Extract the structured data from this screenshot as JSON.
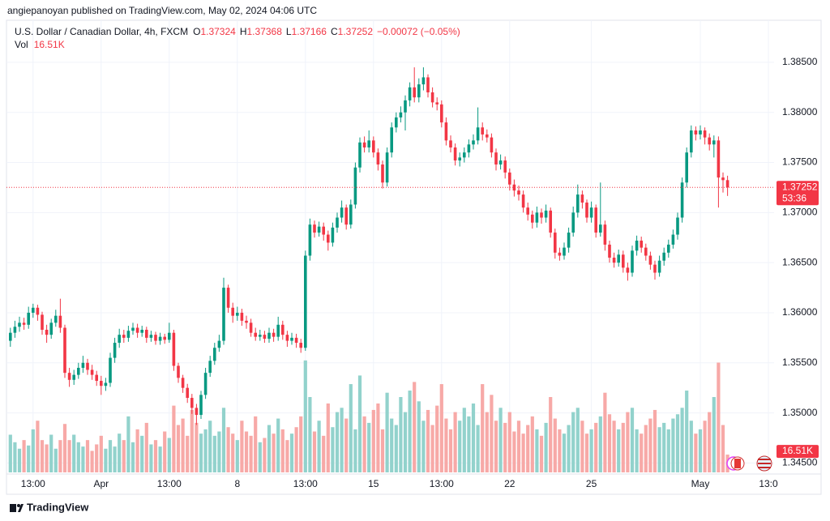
{
  "header": {
    "publisher": "angiepanoyan published on TradingView.com, May 02, 2024 04:06 UTC"
  },
  "footer": {
    "brand": "TradingView"
  },
  "chart_data": {
    "type": "candlestick",
    "title": "U.S. Dollar / Canadian Dollar, 4h, FXCM",
    "ohlc_prefixes": [
      "O",
      "H",
      "L",
      "C"
    ],
    "change": "−0.00072 (−0.05%)",
    "volume_title": "Vol",
    "volume_label": "16.51K",
    "countdown": "53:36",
    "categories": [
      null,
      null,
      null,
      null,
      null,
      "13:00",
      null,
      null,
      null,
      null,
      null,
      null,
      null,
      null,
      null,
      null,
      null,
      null,
      null,
      null,
      "Apr",
      null,
      null,
      null,
      null,
      null,
      null,
      null,
      null,
      null,
      null,
      null,
      null,
      null,
      null,
      "13:00",
      null,
      null,
      null,
      null,
      null,
      null,
      null,
      null,
      null,
      null,
      null,
      null,
      null,
      null,
      "8",
      null,
      null,
      null,
      null,
      null,
      null,
      null,
      null,
      null,
      null,
      null,
      null,
      null,
      null,
      "13:00",
      null,
      null,
      null,
      null,
      null,
      null,
      null,
      null,
      null,
      null,
      null,
      null,
      null,
      null,
      "15",
      null,
      null,
      null,
      null,
      null,
      null,
      null,
      null,
      null,
      null,
      null,
      null,
      null,
      null,
      "13:00",
      null,
      null,
      null,
      null,
      null,
      null,
      null,
      null,
      null,
      null,
      null,
      null,
      null,
      null,
      "22",
      null,
      null,
      null,
      null,
      null,
      null,
      null,
      null,
      null,
      null,
      null,
      null,
      null,
      null,
      null,
      null,
      null,
      "25",
      null,
      null,
      null,
      null,
      null,
      null,
      null,
      null,
      null,
      null,
      null,
      null,
      null,
      null,
      null,
      null,
      null,
      null,
      null,
      null,
      null,
      null,
      null,
      "May",
      null,
      null,
      null,
      null,
      null,
      null,
      null,
      null,
      null,
      null,
      null,
      null,
      null,
      null,
      "13:0"
    ],
    "open": [
      1.3572,
      1.358,
      1.3586,
      1.359,
      1.3588,
      1.36,
      1.3605,
      1.3598,
      1.3583,
      1.3578,
      1.359,
      1.3597,
      1.3585,
      1.354,
      1.3533,
      1.3538,
      1.3545,
      1.355,
      1.3543,
      1.3538,
      1.3532,
      1.3527,
      1.353,
      1.3555,
      1.357,
      1.3578,
      1.3575,
      1.3582,
      1.3585,
      1.358,
      1.3583,
      1.3575,
      1.3578,
      1.3572,
      1.3576,
      1.3573,
      1.358,
      1.3547,
      1.3535,
      1.3525,
      1.3515,
      1.3505,
      1.3498,
      1.3518,
      1.354,
      1.3552,
      1.3565,
      1.3572,
      1.3625,
      1.3605,
      1.3597,
      1.36,
      1.3592,
      1.359,
      1.358,
      1.3576,
      1.3578,
      1.3574,
      1.358,
      1.3576,
      1.3588,
      1.3578,
      1.3572,
      1.3575,
      1.357,
      1.3565,
      1.3657,
      1.3688,
      1.368,
      1.3686,
      1.3678,
      1.367,
      1.3685,
      1.3695,
      1.3705,
      1.3688,
      1.3708,
      1.3745,
      1.377,
      1.3765,
      1.3772,
      1.376,
      1.3748,
      1.373,
      1.376,
      1.3785,
      1.3795,
      1.38,
      1.3812,
      1.3825,
      1.3815,
      1.3828,
      1.3835,
      1.382,
      1.381,
      1.3808,
      1.379,
      1.3772,
      1.3765,
      1.3752,
      1.3755,
      1.376,
      1.3768,
      1.3772,
      1.3785,
      1.3778,
      1.3775,
      1.376,
      1.3748,
      1.3752,
      1.374,
      1.3728,
      1.3722,
      1.3718,
      1.3705,
      1.3698,
      1.369,
      1.37,
      1.3695,
      1.3702,
      1.368,
      1.366,
      1.3657,
      1.3665,
      1.368,
      1.37,
      1.3718,
      1.371,
      1.3695,
      1.3705,
      1.368,
      1.3688,
      1.3668,
      1.3655,
      1.365,
      1.3658,
      1.3645,
      1.364,
      1.3662,
      1.3672,
      1.3665,
      1.3657,
      1.3648,
      1.364,
      1.3652,
      1.366,
      1.3668,
      1.3678,
      1.3695,
      1.373,
      1.376,
      1.3782,
      1.3778,
      1.3782,
      1.3775,
      1.3768,
      1.3772,
      1.3735,
      1.37324,
      null,
      null,
      null,
      null,
      null,
      null,
      null,
      null,
      null
    ],
    "high": [
      1.3585,
      1.3592,
      1.3596,
      1.3595,
      1.3606,
      1.3609,
      1.3608,
      1.3601,
      1.3588,
      1.3594,
      1.3603,
      1.3614,
      1.3588,
      1.3545,
      1.3543,
      1.355,
      1.3557,
      1.3554,
      1.3548,
      1.3542,
      1.3537,
      1.3535,
      1.356,
      1.3575,
      1.3584,
      1.3583,
      1.3587,
      1.359,
      1.3589,
      1.3587,
      1.3586,
      1.3582,
      1.3581,
      1.358,
      1.3579,
      1.359,
      1.3583,
      1.355,
      1.3538,
      1.3529,
      1.3519,
      1.3509,
      1.3522,
      1.3545,
      1.3557,
      1.357,
      1.3578,
      1.3635,
      1.3628,
      1.361,
      1.3606,
      1.3604,
      1.3597,
      1.3594,
      1.3585,
      1.3583,
      1.3582,
      1.3585,
      1.3584,
      1.3596,
      1.3592,
      1.3582,
      1.358,
      1.3579,
      1.3574,
      1.3662,
      1.3694,
      1.3692,
      1.3691,
      1.369,
      1.3682,
      1.369,
      1.37,
      1.3712,
      1.3708,
      1.3713,
      1.375,
      1.3775,
      1.3776,
      1.3782,
      1.3776,
      1.3764,
      1.3752,
      1.3765,
      1.379,
      1.38,
      1.3806,
      1.3817,
      1.383,
      1.3845,
      1.3834,
      1.3845,
      1.3838,
      1.3825,
      1.3815,
      1.3812,
      1.3795,
      1.3777,
      1.3769,
      1.376,
      1.3765,
      1.3773,
      1.3778,
      1.3805,
      1.379,
      1.3783,
      1.3779,
      1.3764,
      1.3758,
      1.3756,
      1.3744,
      1.3733,
      1.3727,
      1.3722,
      1.371,
      1.3702,
      1.3706,
      1.3704,
      1.3708,
      1.3705,
      1.3684,
      1.3665,
      1.367,
      1.3685,
      1.3706,
      1.3728,
      1.3722,
      1.3713,
      1.3711,
      1.3708,
      1.373,
      1.3692,
      1.3672,
      1.366,
      1.3663,
      1.3662,
      1.365,
      1.3667,
      1.3677,
      1.3676,
      1.3669,
      1.3661,
      1.3652,
      1.3657,
      1.3665,
      1.3673,
      1.3683,
      1.37,
      1.3735,
      1.3765,
      1.3787,
      1.3786,
      1.3787,
      1.3785,
      1.3779,
      1.3777,
      1.3776,
      1.374,
      1.37368,
      null,
      null,
      null,
      null,
      null,
      null,
      null,
      null,
      null
    ],
    "low": [
      1.3566,
      1.3575,
      1.3581,
      1.3583,
      1.3584,
      1.3595,
      1.3592,
      1.3578,
      1.357,
      1.3574,
      1.3586,
      1.358,
      1.3535,
      1.3526,
      1.3528,
      1.3534,
      1.354,
      1.3538,
      1.3533,
      1.3527,
      1.3518,
      1.3522,
      1.3526,
      1.355,
      1.3565,
      1.357,
      1.3571,
      1.3578,
      1.3575,
      1.3576,
      1.357,
      1.3571,
      1.3568,
      1.3568,
      1.3569,
      1.357,
      1.3542,
      1.353,
      1.352,
      1.351,
      1.3499,
      1.3488,
      1.3494,
      1.3514,
      1.3536,
      1.3548,
      1.3561,
      1.3568,
      1.36,
      1.359,
      1.3592,
      1.3587,
      1.3584,
      1.3576,
      1.3572,
      1.3572,
      1.357,
      1.357,
      1.3571,
      1.3572,
      1.3573,
      1.3566,
      1.3568,
      1.3565,
      1.356,
      1.3562,
      1.3652,
      1.3675,
      1.3676,
      1.3672,
      1.3662,
      1.3666,
      1.368,
      1.369,
      1.3683,
      1.3684,
      1.3704,
      1.374,
      1.376,
      1.376,
      1.3755,
      1.3742,
      1.3724,
      1.3726,
      1.3755,
      1.378,
      1.379,
      1.3782,
      1.3806,
      1.381,
      1.381,
      1.3822,
      1.3815,
      1.3805,
      1.3802,
      1.3785,
      1.3767,
      1.376,
      1.3747,
      1.3746,
      1.375,
      1.3755,
      1.3763,
      1.3768,
      1.3772,
      1.377,
      1.3755,
      1.3742,
      1.3743,
      1.3734,
      1.3722,
      1.3716,
      1.3712,
      1.37,
      1.3692,
      1.3684,
      1.3685,
      1.3689,
      1.369,
      1.3675,
      1.3654,
      1.3652,
      1.3653,
      1.366,
      1.3676,
      1.3695,
      1.3704,
      1.369,
      1.369,
      1.3675,
      1.3676,
      1.3662,
      1.365,
      1.3645,
      1.3646,
      1.364,
      1.3632,
      1.3636,
      1.3657,
      1.366,
      1.3652,
      1.3643,
      1.3633,
      1.3636,
      1.3647,
      1.3655,
      1.3664,
      1.3673,
      1.369,
      1.3725,
      1.3755,
      1.3772,
      1.3773,
      1.3768,
      1.3762,
      1.3755,
      1.3705,
      1.372,
      1.37166,
      null,
      null,
      null,
      null,
      null,
      null,
      null,
      null,
      null
    ],
    "close": [
      1.358,
      1.3586,
      1.359,
      1.3588,
      1.36,
      1.3605,
      1.3598,
      1.3583,
      1.3578,
      1.359,
      1.3597,
      1.3585,
      1.354,
      1.3533,
      1.3538,
      1.3545,
      1.355,
      1.3543,
      1.3538,
      1.3532,
      1.3527,
      1.353,
      1.3555,
      1.357,
      1.3578,
      1.3575,
      1.3582,
      1.3585,
      1.358,
      1.3583,
      1.3575,
      1.3578,
      1.3572,
      1.3576,
      1.3573,
      1.358,
      1.3547,
      1.3535,
      1.3525,
      1.3515,
      1.3505,
      1.3498,
      1.3518,
      1.354,
      1.3552,
      1.3565,
      1.3572,
      1.3625,
      1.3605,
      1.3597,
      1.36,
      1.3592,
      1.359,
      1.358,
      1.3576,
      1.3578,
      1.3574,
      1.358,
      1.3576,
      1.3588,
      1.3578,
      1.3572,
      1.3575,
      1.357,
      1.3565,
      1.3657,
      1.3688,
      1.368,
      1.3686,
      1.3678,
      1.367,
      1.3685,
      1.3695,
      1.3705,
      1.3688,
      1.3708,
      1.3745,
      1.377,
      1.3765,
      1.3772,
      1.376,
      1.3748,
      1.373,
      1.376,
      1.3785,
      1.3795,
      1.38,
      1.3812,
      1.3825,
      1.3815,
      1.3828,
      1.3835,
      1.382,
      1.381,
      1.3808,
      1.379,
      1.3772,
      1.3765,
      1.3752,
      1.3755,
      1.376,
      1.3768,
      1.3772,
      1.3785,
      1.3778,
      1.3775,
      1.376,
      1.3748,
      1.3752,
      1.374,
      1.3728,
      1.3722,
      1.3718,
      1.3705,
      1.3698,
      1.369,
      1.37,
      1.3695,
      1.3702,
      1.368,
      1.366,
      1.3657,
      1.3665,
      1.368,
      1.37,
      1.3718,
      1.371,
      1.3695,
      1.3705,
      1.368,
      1.3688,
      1.3668,
      1.3655,
      1.365,
      1.3658,
      1.3645,
      1.364,
      1.3662,
      1.3672,
      1.3665,
      1.3657,
      1.3648,
      1.364,
      1.3652,
      1.366,
      1.3668,
      1.3678,
      1.3695,
      1.373,
      1.376,
      1.3782,
      1.3778,
      1.3782,
      1.3775,
      1.3768,
      1.3772,
      1.3735,
      1.37324,
      1.37252,
      null,
      null,
      null,
      null,
      null,
      null,
      null,
      null,
      null
    ],
    "volume": [
      35000,
      28000,
      22000,
      30000,
      25000,
      40000,
      48000,
      30000,
      26000,
      35000,
      22000,
      30000,
      45000,
      30000,
      35000,
      28000,
      24000,
      30000,
      20000,
      26000,
      34000,
      22000,
      30000,
      24000,
      36000,
      30000,
      52000,
      28000,
      40000,
      34000,
      46000,
      26000,
      30000,
      24000,
      38000,
      32000,
      62000,
      44000,
      50000,
      34000,
      58000,
      46000,
      36000,
      40000,
      48000,
      34000,
      38000,
      60000,
      42000,
      36000,
      30000,
      48000,
      38000,
      34000,
      52000,
      28000,
      32000,
      44000,
      36000,
      50000,
      40000,
      30000,
      36000,
      42000,
      52000,
      104000,
      70000,
      38000,
      48000,
      34000,
      64000,
      42000,
      56000,
      60000,
      50000,
      82000,
      40000,
      90000,
      52000,
      46000,
      58000,
      64000,
      40000,
      74000,
      50000,
      44000,
      70000,
      56000,
      76000,
      84000,
      66000,
      48000,
      58000,
      44000,
      62000,
      82000,
      50000,
      40000,
      56000,
      48000,
      60000,
      52000,
      64000,
      44000,
      82000,
      56000,
      72000,
      48000,
      60000,
      46000,
      56000,
      38000,
      48000,
      36000,
      44000,
      52000,
      40000,
      34000,
      46000,
      70000,
      50000,
      40000,
      36000,
      44000,
      56000,
      60000,
      48000,
      36000,
      40000,
      46000,
      52000,
      74000,
      54000,
      48000,
      40000,
      46000,
      56000,
      60000,
      40000,
      36000,
      44000,
      50000,
      58000,
      42000,
      46000,
      40000,
      50000,
      54000,
      60000,
      76000,
      48000,
      36000,
      40000,
      48000,
      56000,
      70000,
      102000,
      44000,
      16510,
      null,
      null,
      null,
      null,
      null,
      null,
      null,
      null,
      null
    ],
    "up_color": "#089981",
    "down_color": "#f23645",
    "volume_up_color": "#92d2cc",
    "volume_down_color": "#f7a9a7",
    "ylim": [
      1.3439,
      1.3892
    ],
    "yticks": [
      {
        "value": 1.345,
        "label": "1.34500"
      },
      {
        "value": 1.35,
        "label": "1.35000"
      },
      {
        "value": 1.355,
        "label": "1.35500"
      },
      {
        "value": 1.36,
        "label": "1.36000"
      },
      {
        "value": 1.365,
        "label": "1.36500"
      },
      {
        "value": 1.37,
        "label": "1.37000"
      },
      {
        "value": 1.375,
        "label": "1.37500"
      },
      {
        "value": 1.38,
        "label": "1.38000"
      },
      {
        "value": 1.385,
        "label": "1.38500"
      }
    ],
    "volume_lim": [
      0,
      420000
    ],
    "grid": true
  }
}
